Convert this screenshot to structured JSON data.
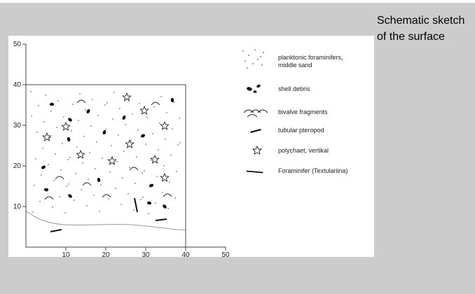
{
  "caption": "Schematic sketch of the surface",
  "axes": {
    "x_ticks": [
      "10",
      "20",
      "30",
      "40",
      "50"
    ],
    "y_ticks": [
      "10",
      "20",
      "30",
      "40",
      "50"
    ]
  },
  "legend": [
    {
      "icon": "sand-dots-icon",
      "label_line1": "planktonic foraminifers,",
      "label_line2": "middle sand"
    },
    {
      "icon": "shell-debris-icon",
      "label_line1": "shell debris"
    },
    {
      "icon": "bivalve-fragments-icon",
      "label_line1": "bivalve fragments"
    },
    {
      "icon": "tubular-pteropod-icon",
      "label_line1": "tubular pteropod"
    },
    {
      "icon": "polychaet-star-icon",
      "label_line1": "polychaet, vertikal"
    },
    {
      "icon": "foraminifer-needle-icon",
      "label_line1": "Foraminifer (Textulariina)"
    }
  ],
  "colors": {
    "background": "#cccccc",
    "panel": "#ffffff",
    "ink": "#111111",
    "seafloor_line": "#999999"
  }
}
